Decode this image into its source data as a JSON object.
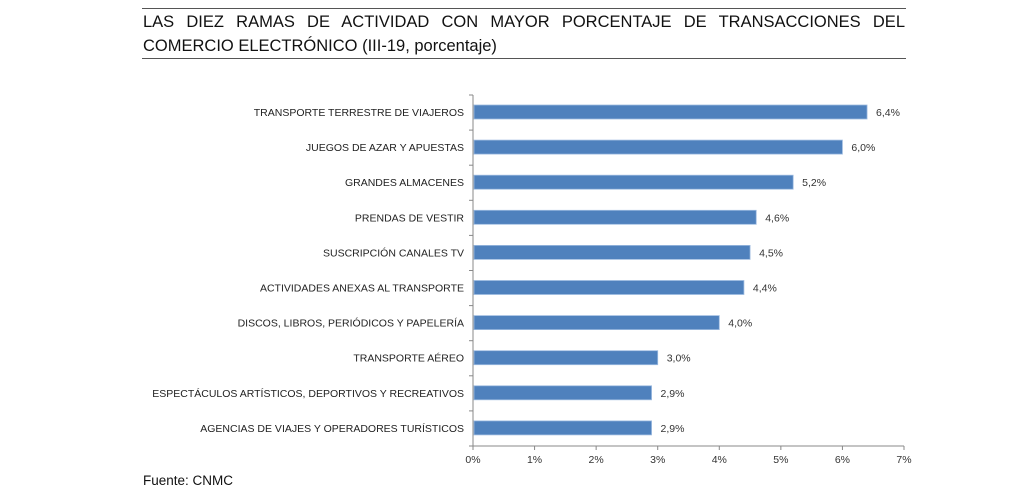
{
  "chart_data": {
    "type": "bar",
    "orientation": "horizontal",
    "title": "LAS DIEZ RAMAS DE ACTIVIDAD CON MAYOR PORCENTAJE DE TRANSACCIONES DEL COMERCIO ELECTRÓNICO (III-19, porcentaje)",
    "categories": [
      "TRANSPORTE TERRESTRE DE VIAJEROS",
      "JUEGOS DE AZAR Y APUESTAS",
      "GRANDES ALMACENES",
      "PRENDAS DE VESTIR",
      "SUSCRIPCIÓN CANALES TV",
      "ACTIVIDADES ANEXAS AL TRANSPORTE",
      "DISCOS, LIBROS, PERIÓDICOS Y PAPELERÍA",
      "TRANSPORTE AÉREO",
      "ESPECTÁCULOS ARTÍSTICOS, DEPORTIVOS Y RECREATIVOS",
      "AGENCIAS DE VIAJES Y OPERADORES TURÍSTICOS"
    ],
    "values": [
      6.4,
      6.0,
      5.2,
      4.6,
      4.5,
      4.4,
      4.0,
      3.0,
      2.9,
      2.9
    ],
    "data_labels": [
      "6,4%",
      "6,0%",
      "5,2%",
      "4,6%",
      "4,5%",
      "4,4%",
      "4,0%",
      "3,0%",
      "2,9%",
      "2,9%"
    ],
    "xlim": [
      0,
      7
    ],
    "x_ticks": [
      "0%",
      "1%",
      "2%",
      "3%",
      "4%",
      "5%",
      "6%",
      "7%"
    ],
    "xlabel": "",
    "ylabel": "",
    "grid": false,
    "legend": "none",
    "bar_color": "#4F81BD"
  },
  "source": "Fuente: CNMC"
}
